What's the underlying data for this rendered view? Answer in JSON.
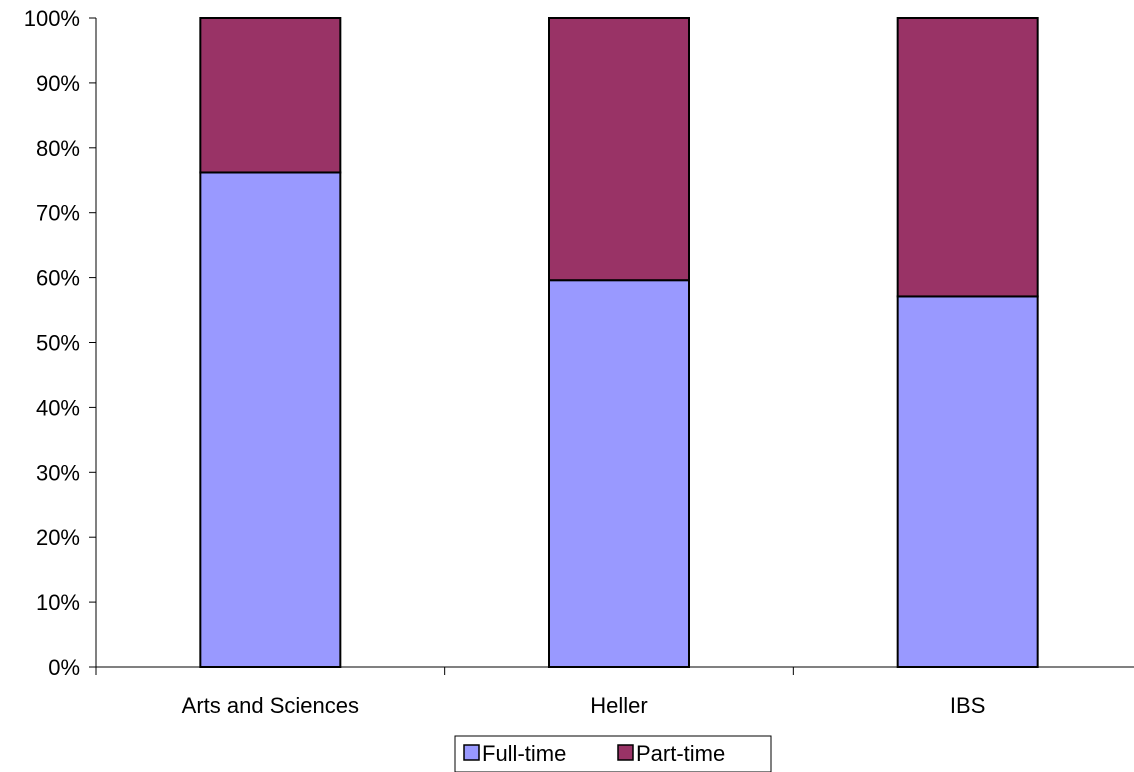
{
  "chart_data": {
    "type": "bar",
    "stacked": true,
    "percent_stacked": true,
    "categories": [
      "Arts and Sciences",
      "Heller",
      "IBS"
    ],
    "series": [
      {
        "name": "Full-time",
        "values": [
          76.2,
          59.6,
          57.1
        ],
        "color": "#9999FF"
      },
      {
        "name": "Part-time",
        "values": [
          23.8,
          40.4,
          42.9
        ],
        "color": "#993366"
      }
    ],
    "ylim": [
      0,
      100
    ],
    "yticks": [
      "0%",
      "10%",
      "20%",
      "30%",
      "40%",
      "50%",
      "60%",
      "70%",
      "80%",
      "90%",
      "100%"
    ],
    "grid": false,
    "legend_position": "bottom",
    "title": "",
    "xlabel": "",
    "ylabel": ""
  }
}
